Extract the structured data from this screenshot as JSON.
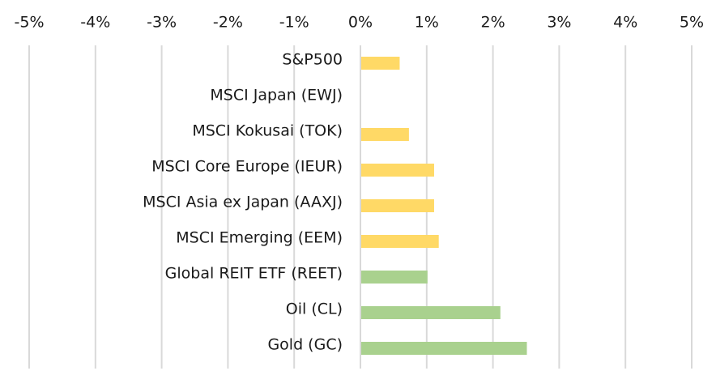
{
  "chart_data": {
    "type": "bar",
    "orientation": "horizontal",
    "xlim": [
      -5,
      5
    ],
    "x_ticks": [
      -5,
      -4,
      -3,
      -2,
      -1,
      0,
      1,
      2,
      3,
      4,
      5
    ],
    "x_tick_labels": [
      "-5%",
      "-4%",
      "-3%",
      "-2%",
      "-1%",
      "0%",
      "1%",
      "2%",
      "3%",
      "4%",
      "5%"
    ],
    "x_axis_position": "top",
    "grid": true,
    "legend": "none",
    "categories": [
      "S&P500",
      "MSCI Japan (EWJ)",
      "MSCI Kokusai (TOK)",
      "MSCI Core Europe (IEUR)",
      "MSCI Asia ex Japan (AAXJ)",
      "MSCI Emerging (EEM)",
      "Global REIT ETF (REET)",
      "Oil (CL)",
      "Gold (GC)"
    ],
    "values": [
      0.58,
      0.0,
      0.72,
      1.1,
      1.1,
      1.17,
      1.0,
      2.1,
      2.5
    ],
    "bar_colors": [
      "#ffd966",
      "#ffd966",
      "#ffd966",
      "#ffd966",
      "#ffd966",
      "#ffd966",
      "#a9d18e",
      "#a9d18e",
      "#a9d18e"
    ],
    "unit": "%"
  },
  "colors": {
    "equity": "#ffd966",
    "alternative": "#a9d18e",
    "grid": "#d9d9d9",
    "text": "#1a1a1a"
  }
}
